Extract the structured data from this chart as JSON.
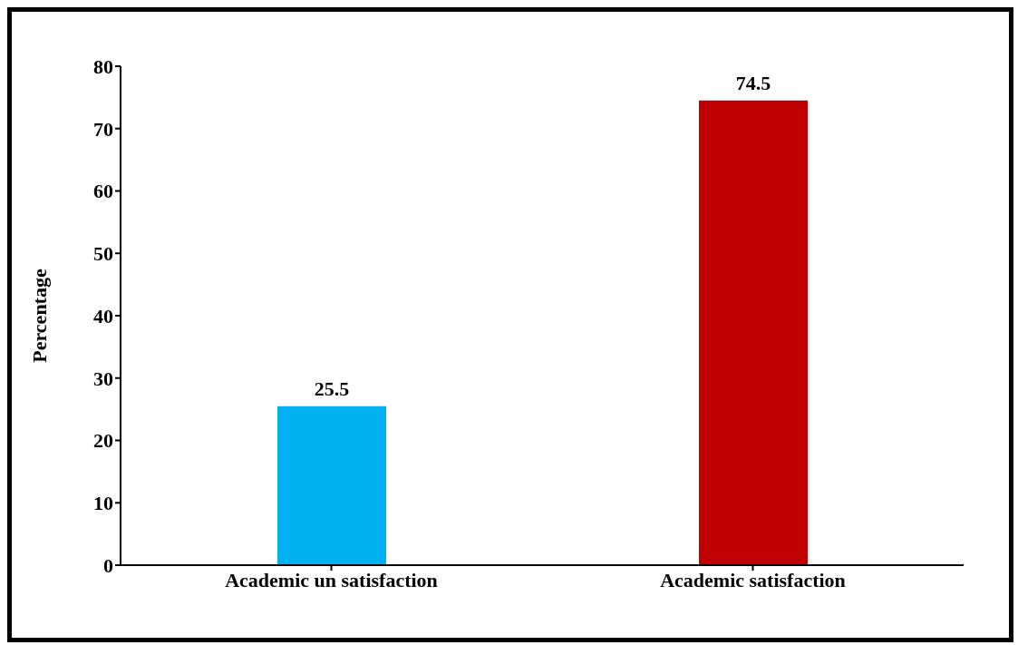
{
  "chart_data": {
    "type": "bar",
    "ylabel": "Percentage",
    "categories": [
      "Academic un satisfaction",
      "Academic satisfaction"
    ],
    "values": [
      25.5,
      74.5
    ],
    "colors": [
      "#00b0f0",
      "#c00000"
    ],
    "ylim": [
      0,
      80
    ],
    "yticks": [
      0,
      10,
      20,
      30,
      40,
      50,
      60,
      70,
      80
    ],
    "data_labels": true
  }
}
